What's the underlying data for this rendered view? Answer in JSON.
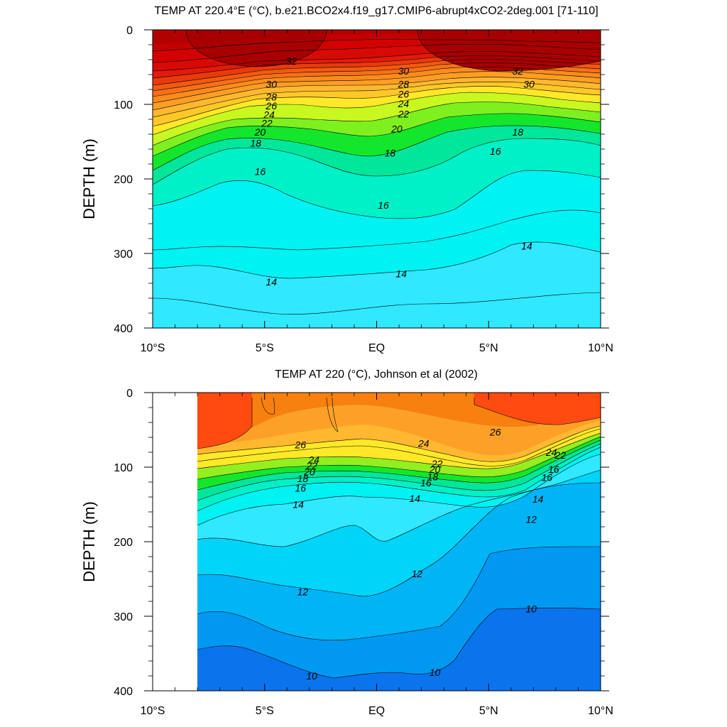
{
  "chart_data": [
    {
      "type": "heatmap",
      "subtype": "filled-contour",
      "title": "TEMP AT 220.4°E (°C), b.e21.BCO2x4.f19_g17.CMIP6-abrupt4xCO2-2deg.001 [71-110]",
      "ylabel": "DEPTH (m)",
      "xlabel": "",
      "x_ticks": [
        "10°S",
        "5°S",
        "EQ",
        "5°N",
        "10°N"
      ],
      "y_ticks": [
        "0",
        "100",
        "200",
        "300",
        "400"
      ],
      "xlim": [
        -10,
        10
      ],
      "ylim": [
        0,
        400
      ],
      "y_inverted": true,
      "data_xlim": [
        -10,
        10
      ],
      "contour_levels": [
        32,
        30,
        28,
        26,
        24,
        22,
        20,
        18,
        16,
        14
      ],
      "contour_labels": [
        {
          "x": -3.8,
          "depth": 42,
          "value": "32"
        },
        {
          "x": 1.2,
          "depth": 55,
          "value": "30"
        },
        {
          "x": 6.3,
          "depth": 55,
          "value": "32"
        },
        {
          "x": -4.7,
          "depth": 73,
          "value": "30"
        },
        {
          "x": 6.8,
          "depth": 73,
          "value": "30"
        },
        {
          "x": 1.2,
          "depth": 73,
          "value": "28"
        },
        {
          "x": -4.7,
          "depth": 90,
          "value": "28"
        },
        {
          "x": 1.2,
          "depth": 86,
          "value": "26"
        },
        {
          "x": -4.7,
          "depth": 102,
          "value": "26"
        },
        {
          "x": 1.2,
          "depth": 99,
          "value": "24"
        },
        {
          "x": -4.8,
          "depth": 114,
          "value": "24"
        },
        {
          "x": 1.2,
          "depth": 113,
          "value": "22"
        },
        {
          "x": -4.9,
          "depth": 125,
          "value": "22"
        },
        {
          "x": 0.9,
          "depth": 133,
          "value": "20"
        },
        {
          "x": -5.2,
          "depth": 137,
          "value": "20"
        },
        {
          "x": 6.3,
          "depth": 137,
          "value": "18"
        },
        {
          "x": -5.4,
          "depth": 152,
          "value": "18"
        },
        {
          "x": 0.6,
          "depth": 165,
          "value": "18"
        },
        {
          "x": 5.3,
          "depth": 163,
          "value": "16"
        },
        {
          "x": -5.2,
          "depth": 190,
          "value": "16"
        },
        {
          "x": 0.3,
          "depth": 235,
          "value": "16"
        },
        {
          "x": 6.7,
          "depth": 290,
          "value": "14"
        },
        {
          "x": 1.1,
          "depth": 327,
          "value": "14"
        },
        {
          "x": -4.7,
          "depth": 338,
          "value": "14"
        }
      ],
      "colors": {
        "t32plus": "#b30000",
        "t30": "#d40000",
        "t28": "#e31a0a",
        "t26": "#f35a10",
        "t24": "#fb8c1c",
        "t22": "#ffb830",
        "t20": "#ffe828",
        "t18": "#7ef020",
        "t17": "#14e62c",
        "t16": "#00e69a",
        "t15": "#00f0c8",
        "t14": "#00f2f2",
        "t13": "#30e8ff",
        "t12": "#10d8f8"
      }
    },
    {
      "type": "heatmap",
      "subtype": "filled-contour",
      "title": "TEMP AT 220 (°C), Johnson et al (2002)",
      "ylabel": "DEPTH (m)",
      "xlabel": "",
      "x_ticks": [
        "10°S",
        "5°S",
        "EQ",
        "5°N",
        "10°N"
      ],
      "y_ticks": [
        "0",
        "100",
        "200",
        "300",
        "400"
      ],
      "xlim": [
        -10,
        10
      ],
      "ylim": [
        0,
        400
      ],
      "y_inverted": true,
      "data_xlim": [
        -8,
        10
      ],
      "contour_levels": [
        26,
        24,
        22,
        20,
        18,
        16,
        14,
        12,
        10
      ],
      "contour_labels": [
        {
          "x": -3.4,
          "depth": 70,
          "value": "26"
        },
        {
          "x": 2.1,
          "depth": 68,
          "value": "24"
        },
        {
          "x": 5.3,
          "depth": 53,
          "value": "26"
        },
        {
          "x": 7.8,
          "depth": 80,
          "value": "24"
        },
        {
          "x": 8.2,
          "depth": 84,
          "value": "22"
        },
        {
          "x": -2.8,
          "depth": 90,
          "value": "24"
        },
        {
          "x": -2.9,
          "depth": 98,
          "value": "22"
        },
        {
          "x": -3.0,
          "depth": 106,
          "value": "20"
        },
        {
          "x": -3.3,
          "depth": 115,
          "value": "18"
        },
        {
          "x": 2.7,
          "depth": 95,
          "value": "22"
        },
        {
          "x": 2.6,
          "depth": 103,
          "value": "20"
        },
        {
          "x": 2.5,
          "depth": 113,
          "value": "18"
        },
        {
          "x": 2.2,
          "depth": 121,
          "value": "16"
        },
        {
          "x": 7.9,
          "depth": 103,
          "value": "16"
        },
        {
          "x": 7.6,
          "depth": 114,
          "value": "16"
        },
        {
          "x": -3.4,
          "depth": 128,
          "value": "16"
        },
        {
          "x": -3.5,
          "depth": 150,
          "value": "14"
        },
        {
          "x": 1.7,
          "depth": 142,
          "value": "14"
        },
        {
          "x": 7.2,
          "depth": 143,
          "value": "14"
        },
        {
          "x": 6.9,
          "depth": 170,
          "value": "12"
        },
        {
          "x": 1.8,
          "depth": 243,
          "value": "12"
        },
        {
          "x": -3.3,
          "depth": 267,
          "value": "12"
        },
        {
          "x": 6.9,
          "depth": 290,
          "value": "10"
        },
        {
          "x": 2.6,
          "depth": 375,
          "value": "10"
        },
        {
          "x": -2.9,
          "depth": 380,
          "value": "10"
        }
      ],
      "colors": {
        "t27": "#ff4a10",
        "t26": "#f7800e",
        "t25": "#fca028",
        "t24": "#ffb830",
        "t21": "#ffe828",
        "t19": "#94ee20",
        "t18": "#14e62c",
        "t17": "#00e69a",
        "t15": "#00f0c8",
        "t14": "#00f2f2",
        "t13": "#30e8ff",
        "t12": "#00d4f8",
        "t11": "#00b4f6",
        "t105": "#0098f0",
        "t10": "#0a74ec"
      }
    }
  ]
}
